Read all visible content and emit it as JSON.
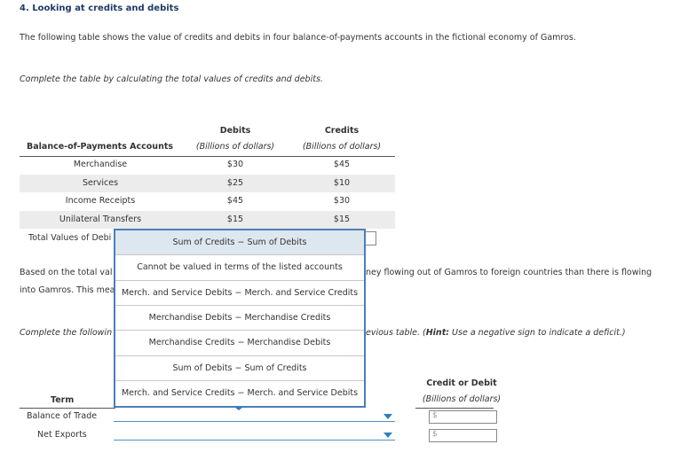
{
  "header": {
    "title": "4. Looking at credits and debits"
  },
  "intro": "The following table shows the value of credits and debits in four balance-of-payments accounts in the fictional economy of Gamros.",
  "instruction": "Complete the table by calculating the total values of credits and debits.",
  "table": {
    "columns": [
      "Balance-of-Payments Accounts",
      "Debits",
      "Credits"
    ],
    "units": [
      "(Billions of dollars)",
      "(Billions of dollars)"
    ],
    "rows": [
      [
        "Merchandise",
        "$30",
        "$45"
      ],
      [
        "Services",
        "$25",
        "$10"
      ],
      [
        "Income Receipts",
        "$45",
        "$30"
      ],
      [
        "Unilateral Transfers",
        "$15",
        "$15"
      ]
    ],
    "total_label": "Total Values of Debi"
  },
  "dropdown": {
    "options": [
      "Sum of Credits − Sum of Debits",
      "Cannot be valued in terms of the listed accounts",
      "Merch. and Service Debits − Merch. and Service Credits",
      "Merchandise Debits − Merchandise Credits",
      "Merchandise Credits − Merchandise Debits",
      "Sum of Debits − Sum of Credits",
      "Merch. and Service Credits − Merch. and Service Debits"
    ]
  },
  "paragraph": {
    "left_1": "Based on the total val",
    "left_2": "into Gamros. This mea",
    "right_1": "ney flowing out of Gamros to foreign countries than there is flowing"
  },
  "instruction2": {
    "left": "Complete the followin",
    "right_a": "evious table. (",
    "hint": "Hint:",
    "right_b": " Use a negative sign to indicate a deficit.)"
  },
  "table2": {
    "columns": [
      "Term",
      "Credit or Debit"
    ],
    "unit": "(Billions of dollars)",
    "rows": [
      {
        "term": "Balance of Trade",
        "prefix": "$"
      },
      {
        "term": "Net Exports",
        "prefix": "$"
      }
    ]
  }
}
